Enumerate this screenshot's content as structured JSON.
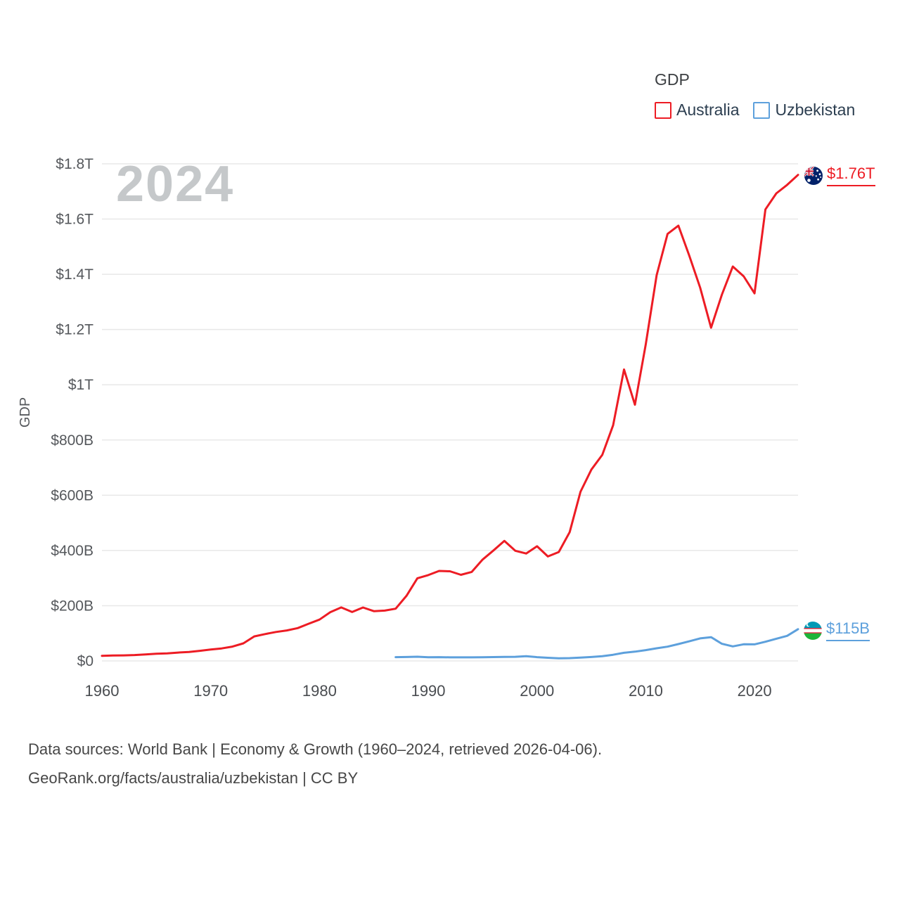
{
  "legend": {
    "title": "GDP",
    "items": [
      {
        "label": "Australia",
        "color": "#ed1c24"
      },
      {
        "label": "Uzbekistan",
        "color": "#5da0dc"
      }
    ]
  },
  "watermark": "2024",
  "end_labels": {
    "australia": {
      "text": "$1.76T"
    },
    "uzbekistan": {
      "text": "$115B"
    }
  },
  "footer": {
    "line1": "Data sources: World Bank | Economy & Growth (1960–2024, retrieved 2026-04-06).",
    "line2": "GeoRank.org/facts/australia/uzbekistan | CC BY"
  },
  "chart_data": {
    "type": "line",
    "title": "GDP",
    "xlabel": "",
    "ylabel": "GDP",
    "xlim": [
      1960,
      2024
    ],
    "ylim": [
      0,
      1800
    ],
    "y_unit": "billion USD",
    "grid": "horizontal",
    "legend_position": "top-right",
    "x_ticks": [
      "1960",
      "1970",
      "1980",
      "1990",
      "2000",
      "2010",
      "2020"
    ],
    "y_ticks": [
      {
        "value": 0,
        "label": "$0"
      },
      {
        "value": 200,
        "label": "$200B"
      },
      {
        "value": 400,
        "label": "$400B"
      },
      {
        "value": 600,
        "label": "$600B"
      },
      {
        "value": 800,
        "label": "$800B"
      },
      {
        "value": 1000,
        "label": "$1T"
      },
      {
        "value": 1200,
        "label": "$1.2T"
      },
      {
        "value": 1400,
        "label": "$1.4T"
      },
      {
        "value": 1600,
        "label": "$1.6T"
      },
      {
        "value": 1800,
        "label": "$1.8T"
      }
    ],
    "series": [
      {
        "name": "Australia",
        "color": "#ed1c24",
        "latest_label": "$1.76T",
        "x": [
          1960,
          1961,
          1962,
          1963,
          1964,
          1965,
          1966,
          1967,
          1968,
          1969,
          1970,
          1971,
          1972,
          1973,
          1974,
          1975,
          1976,
          1977,
          1978,
          1979,
          1980,
          1981,
          1982,
          1983,
          1984,
          1985,
          1986,
          1987,
          1988,
          1989,
          1990,
          1991,
          1992,
          1993,
          1994,
          1995,
          1996,
          1997,
          1998,
          1999,
          2000,
          2001,
          2002,
          2003,
          2004,
          2005,
          2006,
          2007,
          2008,
          2009,
          2010,
          2011,
          2012,
          2013,
          2014,
          2015,
          2016,
          2017,
          2018,
          2019,
          2020,
          2021,
          2022,
          2023,
          2024
        ],
        "values": [
          18.6,
          19.7,
          20.0,
          21.5,
          23.8,
          26.0,
          27.3,
          30.4,
          32.7,
          36.6,
          41.3,
          45.2,
          51.9,
          63.6,
          88.8,
          97.2,
          104.9,
          110.4,
          118.8,
          134.6,
          149.8,
          176.6,
          193.8,
          177.2,
          193.4,
          180.2,
          182.2,
          189.1,
          235.8,
          299.3,
          310.8,
          325.9,
          324.7,
          312.0,
          322.2,
          367.2,
          400.3,
          434.6,
          399.0,
          388.9,
          415.2,
          378.3,
          394.3,
          466.5,
          612.5,
          693.1,
          746.1,
          853.3,
          1055.3,
          927.8,
          1146.1,
          1396.6,
          1546.2,
          1576.2,
          1467.5,
          1351.3,
          1206.5,
          1326.5,
          1428.3,
          1392.7,
          1331.0,
          1635.0,
          1693.0,
          1724.0,
          1760.0
        ]
      },
      {
        "name": "Uzbekistan",
        "color": "#5da0dc",
        "latest_label": "$115B",
        "x": [
          1987,
          1988,
          1989,
          1990,
          1991,
          1992,
          1993,
          1994,
          1995,
          1996,
          1997,
          1998,
          1999,
          2000,
          2001,
          2002,
          2003,
          2004,
          2005,
          2006,
          2007,
          2008,
          2009,
          2010,
          2011,
          2012,
          2013,
          2014,
          2015,
          2016,
          2017,
          2018,
          2019,
          2020,
          2021,
          2022,
          2023,
          2024
        ],
        "values": [
          13.7,
          14.2,
          15.3,
          13.4,
          13.8,
          13.0,
          13.1,
          12.9,
          13.3,
          13.9,
          14.7,
          15.0,
          17.1,
          13.8,
          11.4,
          9.7,
          10.1,
          12.0,
          14.3,
          17.3,
          22.3,
          29.5,
          33.7,
          39.3,
          45.9,
          51.8,
          61.0,
          71.0,
          81.8,
          86.1,
          62.1,
          52.7,
          60.3,
          60.2,
          69.6,
          80.4,
          90.9,
          115.0
        ]
      }
    ]
  }
}
